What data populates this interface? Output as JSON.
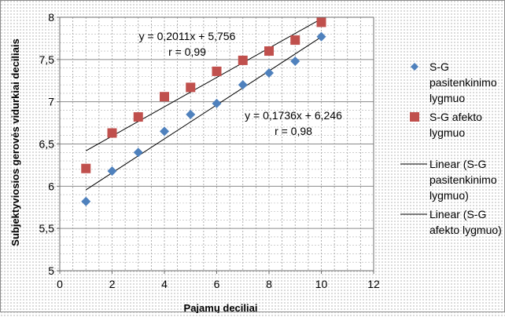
{
  "chart_data": {
    "type": "scatter",
    "title": "",
    "xlabel": "Pajamų deciliai",
    "ylabel": "Subjektyviosios gerovės vidurkiai deciliais",
    "xlim": [
      0,
      12
    ],
    "ylim": [
      5,
      8
    ],
    "x_ticks": [
      "0",
      "2",
      "4",
      "6",
      "8",
      "10",
      "12"
    ],
    "y_ticks": [
      "5",
      "5,5",
      "6",
      "6,5",
      "7",
      "7,5",
      "8"
    ],
    "grid": true,
    "legend_position": "right",
    "series": [
      {
        "name": "S-G pasitenkinimo lygmuo",
        "marker": "diamond",
        "color": "#4f81bd",
        "x": [
          1,
          2,
          3,
          4,
          5,
          6,
          7,
          8,
          9,
          10
        ],
        "y": [
          5.82,
          6.18,
          6.4,
          6.65,
          6.85,
          6.98,
          7.2,
          7.34,
          7.48,
          7.77
        ]
      },
      {
        "name": "S-G afekto lygmuo",
        "marker": "square",
        "color": "#c0504d",
        "x": [
          1,
          2,
          3,
          4,
          5,
          6,
          7,
          8,
          9,
          10
        ],
        "y": [
          6.21,
          6.63,
          6.82,
          7.06,
          7.17,
          7.36,
          7.49,
          7.6,
          7.73,
          7.94
        ]
      }
    ],
    "trendlines": [
      {
        "name": "Linear (S-G pasitenkinimo lygmuo)",
        "slope": 0.2011,
        "intercept": 5.756,
        "x_range": [
          1,
          10
        ],
        "color": "#000000"
      },
      {
        "name": "Linear (S-G afekto lygmuo)",
        "slope": 0.1736,
        "intercept": 6.246,
        "x_range": [
          1,
          10
        ],
        "color": "#000000"
      }
    ],
    "annotations": [
      {
        "lines": [
          "y = 0,2011x + 5,756",
          "r = 0,99"
        ]
      },
      {
        "lines": [
          "y = 0,1736x + 6,246",
          "r = 0,98"
        ]
      }
    ],
    "legend": [
      {
        "lines": [
          "S-G",
          "pasitenkinimo",
          "lygmuo"
        ],
        "marker": "diamond",
        "color": "#4f81bd"
      },
      {
        "lines": [
          "S-G afekto",
          "lygmuo"
        ],
        "marker": "square",
        "color": "#c0504d"
      },
      {
        "lines": [
          "Linear (S-G",
          "pasitenkinimo",
          "lygmuo)"
        ],
        "marker": "line",
        "color": "#000000"
      },
      {
        "lines": [
          "Linear (S-G",
          "afekto lygmuo)"
        ],
        "marker": "line",
        "color": "#000000"
      }
    ]
  }
}
